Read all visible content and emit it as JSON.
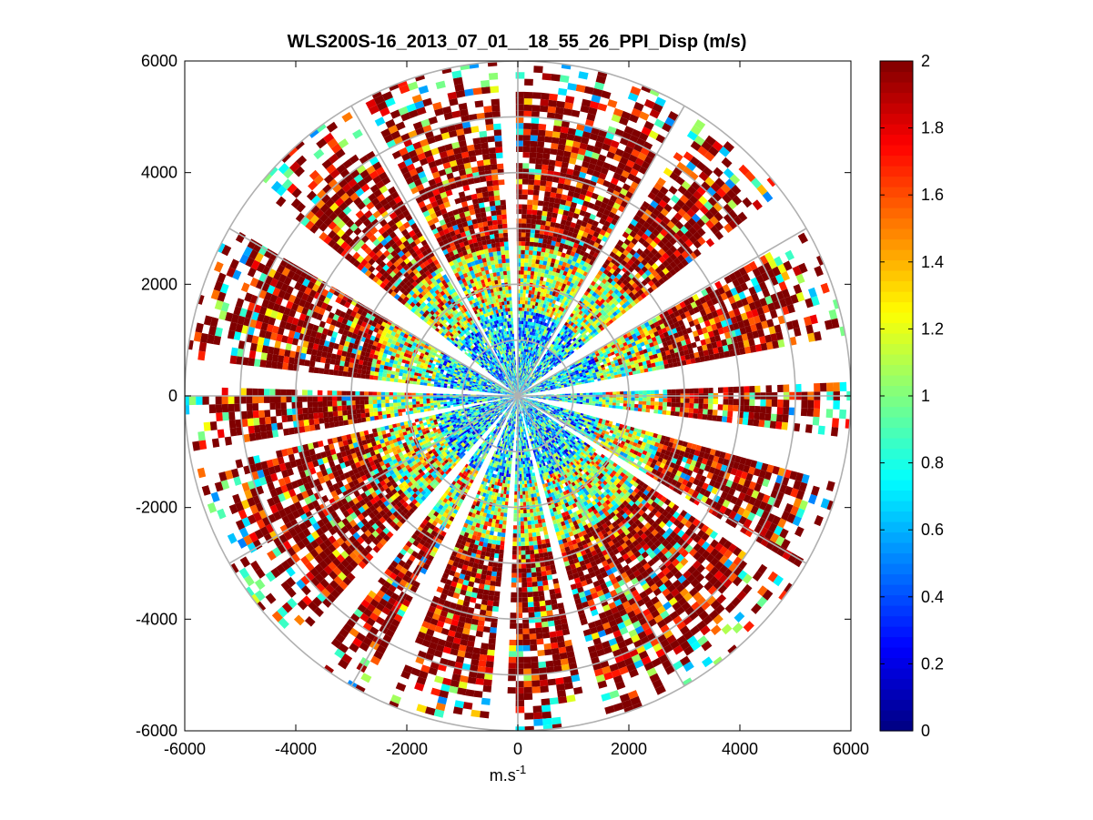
{
  "chart_data": {
    "type": "heatmap",
    "subtype": "polar-ppi",
    "title": "WLS200S-16_2013_07_01__18_55_26_PPI_Disp (m/s)",
    "xlabel": {
      "base": "m.s",
      "exponent": "-1"
    },
    "ylabel": "",
    "xlim": [
      -6000,
      6000
    ],
    "ylim": [
      -6000,
      6000
    ],
    "x_ticks": [
      "-6000",
      "-4000",
      "-2000",
      "0",
      "2000",
      "4000",
      "6000"
    ],
    "y_ticks": [
      "-6000",
      "-4000",
      "-2000",
      "0",
      "2000",
      "4000",
      "6000"
    ],
    "polar_grid": {
      "ring_radii": [
        1000,
        2000,
        3000,
        4000,
        5000,
        6000
      ],
      "spoke_angles_deg": [
        0,
        30,
        60,
        90,
        120,
        150,
        180,
        210,
        240,
        270,
        300,
        330
      ]
    },
    "data_range_radius": [
      0,
      6000
    ],
    "gaps_azimuth_deg": [
      [
        174,
        178
      ],
      [
        141,
        149
      ],
      [
        118,
        121
      ],
      [
        91,
        93
      ],
      [
        57,
        60
      ],
      [
        30,
        38
      ],
      [
        3,
        10
      ],
      [
        -16,
        -8
      ],
      [
        -34,
        -31
      ],
      [
        -77,
        -74
      ],
      [
        -96,
        -92
      ],
      [
        -118,
        -113
      ],
      [
        -132,
        -128
      ],
      [
        -170,
        -168
      ]
    ],
    "colorbar": {
      "colormap": "jet",
      "min": 0,
      "max": 2,
      "ticks": [
        "0",
        "0.2",
        "0.4",
        "0.6",
        "0.8",
        "1",
        "1.2",
        "1.4",
        "1.6",
        "1.8",
        "2"
      ],
      "levels": 64
    }
  }
}
